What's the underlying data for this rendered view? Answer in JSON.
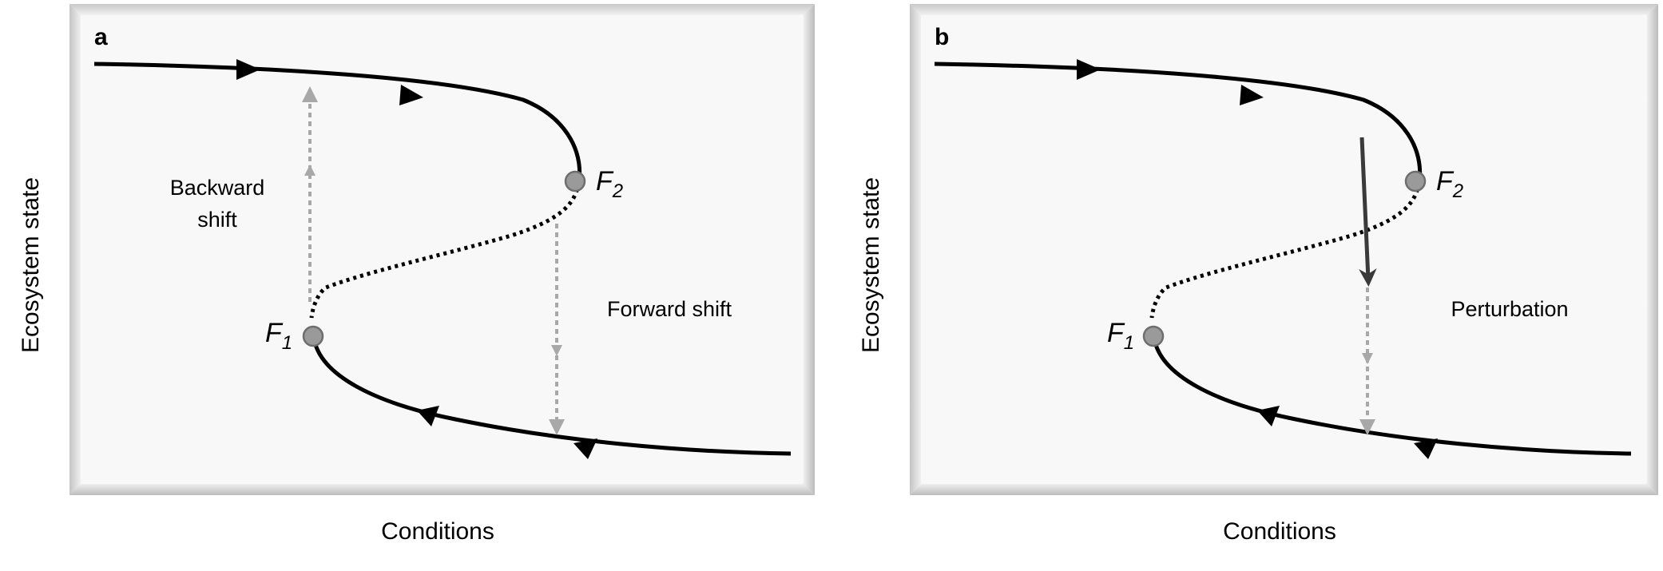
{
  "panels": [
    {
      "letter": "a",
      "y_label": "Ecosystem state",
      "x_label": "Conditions",
      "f1_label": "F",
      "f1_sub": "1",
      "f2_label": "F",
      "f2_sub": "2",
      "annotation_backward_line1": "Backward",
      "annotation_backward_line2": "shift",
      "annotation_forward": "Forward shift"
    },
    {
      "letter": "b",
      "y_label": "Ecosystem state",
      "x_label": "Conditions",
      "f1_label": "F",
      "f1_sub": "1",
      "f2_label": "F",
      "f2_sub": "2",
      "annotation_perturbation": "Perturbation"
    }
  ],
  "colors": {
    "curve": "#000000",
    "fold_point": "#9a9a9a",
    "shift_arrow": "#a8a8a8",
    "perturbation_arrow": "#3a3a3a",
    "panel_face": "#f8f8f8"
  }
}
